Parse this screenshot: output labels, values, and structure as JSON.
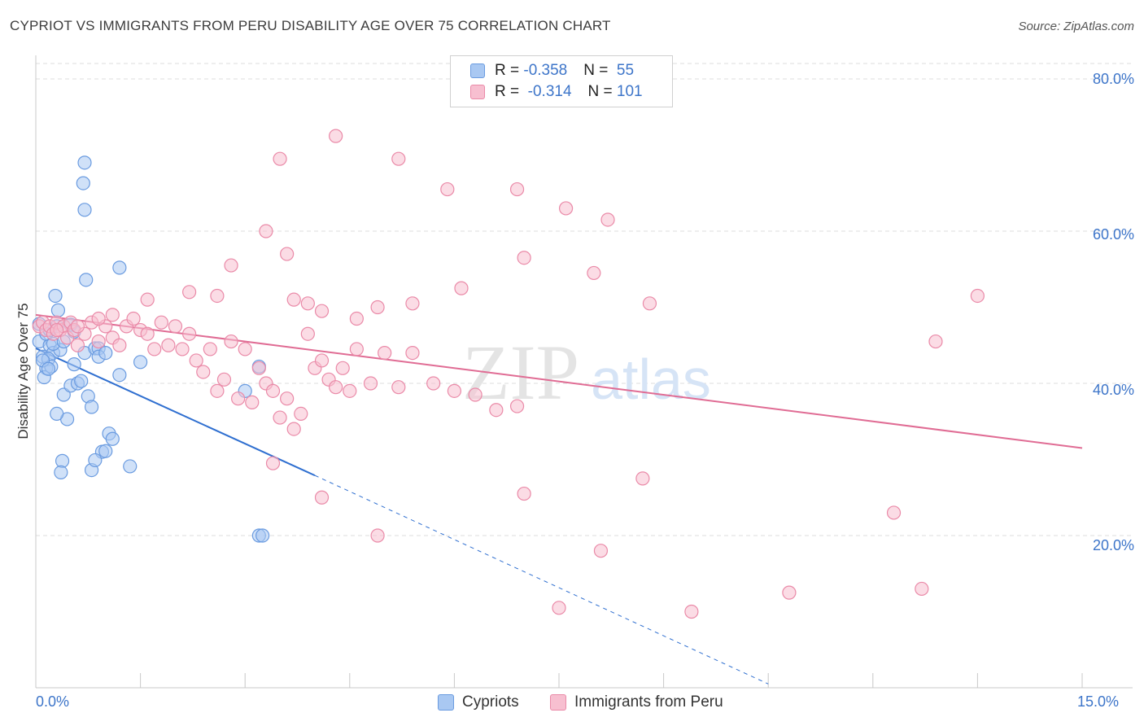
{
  "header": {
    "title": "CYPRIOT VS IMMIGRANTS FROM PERU DISABILITY AGE OVER 75 CORRELATION CHART",
    "source": "Source: ZipAtlas.com"
  },
  "legend": {
    "rows": [
      {
        "r_label": "R = ",
        "r_value": "-0.358",
        "n_label": "N = ",
        "n_value": " 55"
      },
      {
        "r_label": "R = ",
        "r_value": " -0.314",
        "n_label": "N = ",
        "n_value": "101"
      }
    ],
    "series": [
      "Cypriots",
      "Immigrants from Peru"
    ]
  },
  "colors": {
    "blue_fill": "#a9c8f2",
    "blue_stroke": "#6a9be0",
    "blue_line": "#2f6fd0",
    "pink_fill": "#f7bfd0",
    "pink_stroke": "#ea8aa8",
    "pink_line": "#e06c94",
    "grid": "#dcdcdc",
    "tick_text": "#3d75c9"
  },
  "watermark": {
    "zip": "ZIP",
    "atlas": "atlas"
  },
  "chart_data": {
    "type": "scatter",
    "title": "CYPRIOT VS IMMIGRANTS FROM PERU DISABILITY AGE OVER 75 CORRELATION CHART",
    "xlabel": "",
    "ylabel": "Disability Age Over 75",
    "xlim": [
      0,
      15
    ],
    "ylim": [
      0,
      80
    ],
    "x_tick_labels": [
      "0.0%",
      "15.0%"
    ],
    "y_ticks": [
      20,
      40,
      60,
      80
    ],
    "y_tick_labels": [
      "20.0%",
      "40.0%",
      "60.0%",
      "80.0%"
    ],
    "grid": true,
    "series": [
      {
        "name": "Cypriots",
        "color": "blue",
        "r": -0.358,
        "n": 55,
        "points": [
          [
            0.05,
            45.5
          ],
          [
            0.1,
            43.5
          ],
          [
            0.15,
            42.0
          ],
          [
            0.2,
            45.0
          ],
          [
            0.25,
            44.0
          ],
          [
            0.3,
            47.5
          ],
          [
            0.12,
            40.8
          ],
          [
            0.18,
            43.2
          ],
          [
            0.22,
            42.2
          ],
          [
            0.28,
            51.5
          ],
          [
            0.32,
            49.6
          ],
          [
            0.35,
            44.4
          ],
          [
            0.4,
            38.5
          ],
          [
            0.45,
            35.3
          ],
          [
            0.5,
            39.7
          ],
          [
            0.55,
            42.5
          ],
          [
            0.6,
            40.0
          ],
          [
            0.65,
            40.3
          ],
          [
            0.7,
            44.0
          ],
          [
            0.75,
            38.3
          ],
          [
            0.8,
            36.9
          ],
          [
            0.85,
            44.6
          ],
          [
            0.9,
            44.6
          ],
          [
            0.95,
            31.0
          ],
          [
            1.0,
            31.1
          ],
          [
            1.05,
            33.4
          ],
          [
            1.1,
            32.7
          ],
          [
            1.2,
            41.1
          ],
          [
            1.35,
            29.1
          ],
          [
            1.5,
            42.8
          ],
          [
            0.3,
            36.0
          ],
          [
            0.38,
            29.8
          ],
          [
            0.36,
            28.3
          ],
          [
            0.8,
            28.6
          ],
          [
            0.85,
            29.9
          ],
          [
            0.7,
            69.0
          ],
          [
            0.68,
            66.3
          ],
          [
            0.7,
            62.8
          ],
          [
            0.72,
            53.6
          ],
          [
            1.2,
            55.2
          ],
          [
            3.2,
            42.2
          ],
          [
            3.0,
            39.0
          ],
          [
            3.2,
            20.0
          ],
          [
            3.25,
            20.0
          ],
          [
            0.15,
            46.5
          ],
          [
            0.2,
            47.0
          ],
          [
            0.25,
            45.2
          ],
          [
            0.1,
            43.0
          ],
          [
            0.18,
            41.9
          ],
          [
            0.05,
            47.8
          ],
          [
            0.5,
            47.7
          ],
          [
            0.55,
            46.8
          ],
          [
            0.9,
            43.5
          ],
          [
            1.0,
            44.0
          ],
          [
            0.4,
            45.5
          ]
        ],
        "trend": {
          "x0": 0.0,
          "y0": 44.6,
          "x1": 4.0,
          "y1": 27.9,
          "dashed_to_x": 10.5,
          "dashed_to_y": 0.5
        }
      },
      {
        "name": "Immigrants from Peru",
        "color": "pink",
        "r": -0.314,
        "n": 101,
        "points": [
          [
            0.05,
            47.5
          ],
          [
            0.1,
            48.0
          ],
          [
            0.15,
            47.0
          ],
          [
            0.2,
            47.5
          ],
          [
            0.25,
            46.5
          ],
          [
            0.3,
            48.0
          ],
          [
            0.35,
            47.0
          ],
          [
            0.4,
            47.5
          ],
          [
            0.45,
            46.0
          ],
          [
            0.5,
            48.0
          ],
          [
            0.55,
            47.0
          ],
          [
            0.6,
            45.0
          ],
          [
            0.7,
            46.5
          ],
          [
            0.8,
            48.0
          ],
          [
            0.9,
            45.5
          ],
          [
            1.0,
            47.5
          ],
          [
            1.1,
            46.0
          ],
          [
            1.2,
            45.0
          ],
          [
            1.3,
            47.5
          ],
          [
            1.4,
            48.5
          ],
          [
            1.5,
            47.0
          ],
          [
            1.6,
            46.5
          ],
          [
            1.7,
            44.5
          ],
          [
            1.8,
            48.0
          ],
          [
            1.9,
            45.0
          ],
          [
            2.0,
            47.5
          ],
          [
            2.1,
            44.5
          ],
          [
            2.2,
            46.5
          ],
          [
            2.3,
            43.0
          ],
          [
            2.4,
            41.5
          ],
          [
            2.5,
            44.5
          ],
          [
            2.6,
            39.0
          ],
          [
            2.7,
            40.5
          ],
          [
            2.8,
            45.5
          ],
          [
            2.9,
            38.0
          ],
          [
            3.0,
            44.5
          ],
          [
            3.1,
            37.5
          ],
          [
            3.2,
            42.0
          ],
          [
            3.3,
            40.0
          ],
          [
            3.4,
            39.0
          ],
          [
            3.5,
            35.5
          ],
          [
            3.6,
            38.0
          ],
          [
            3.7,
            34.0
          ],
          [
            3.8,
            36.0
          ],
          [
            3.9,
            46.5
          ],
          [
            4.0,
            42.0
          ],
          [
            4.1,
            43.0
          ],
          [
            4.2,
            40.5
          ],
          [
            4.3,
            39.5
          ],
          [
            4.4,
            42.0
          ],
          [
            4.5,
            39.0
          ],
          [
            4.6,
            44.5
          ],
          [
            4.8,
            40.0
          ],
          [
            5.0,
            44.0
          ],
          [
            5.2,
            39.5
          ],
          [
            5.4,
            44.0
          ],
          [
            5.7,
            40.0
          ],
          [
            6.0,
            39.0
          ],
          [
            6.3,
            38.5
          ],
          [
            6.6,
            36.5
          ],
          [
            6.9,
            37.0
          ],
          [
            0.9,
            48.5
          ],
          [
            1.1,
            49.0
          ],
          [
            1.6,
            51.0
          ],
          [
            2.2,
            52.0
          ],
          [
            2.6,
            51.5
          ],
          [
            2.8,
            55.5
          ],
          [
            3.3,
            60.0
          ],
          [
            3.6,
            57.0
          ],
          [
            3.7,
            51.0
          ],
          [
            3.9,
            50.5
          ],
          [
            4.1,
            49.5
          ],
          [
            4.6,
            48.5
          ],
          [
            4.9,
            50.0
          ],
          [
            5.4,
            50.5
          ],
          [
            6.1,
            52.5
          ],
          [
            7.0,
            56.5
          ],
          [
            8.0,
            54.5
          ],
          [
            8.8,
            50.5
          ],
          [
            13.5,
            51.5
          ],
          [
            3.5,
            69.5
          ],
          [
            4.3,
            72.5
          ],
          [
            5.2,
            69.5
          ],
          [
            5.9,
            65.5
          ],
          [
            6.9,
            65.5
          ],
          [
            7.6,
            63.0
          ],
          [
            8.2,
            61.5
          ],
          [
            12.9,
            45.5
          ],
          [
            3.4,
            29.5
          ],
          [
            4.1,
            25.0
          ],
          [
            7.0,
            25.5
          ],
          [
            8.7,
            27.5
          ],
          [
            12.3,
            23.0
          ],
          [
            4.9,
            20.0
          ],
          [
            8.1,
            18.0
          ],
          [
            7.5,
            10.5
          ],
          [
            9.4,
            10.0
          ],
          [
            10.8,
            12.5
          ],
          [
            12.7,
            13.0
          ],
          [
            0.3,
            47.0
          ],
          [
            0.6,
            47.5
          ]
        ],
        "trend": {
          "x0": 0.0,
          "y0": 49.0,
          "x1": 15.0,
          "y1": 31.5
        }
      }
    ]
  }
}
